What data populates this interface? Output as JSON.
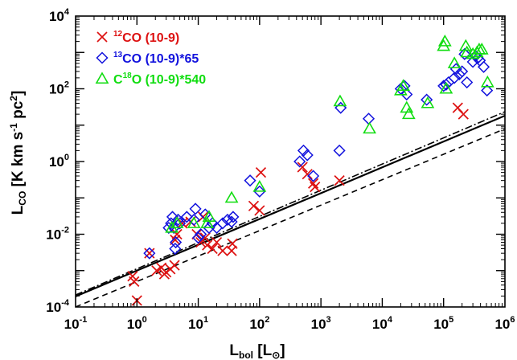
{
  "chart_data": {
    "type": "scatter",
    "title": "",
    "xlabel": {
      "main": "L",
      "sub": "bol",
      "unit_open": " [L",
      "unit_sub": "⊙",
      "unit_close": "]"
    },
    "ylabel": {
      "main": "L",
      "sub": "CO",
      "unit": " [K km s",
      "sup1": "-1",
      "mid": " pc",
      "sup2": "2",
      "close": "]"
    },
    "x_scale": "log",
    "y_scale": "log",
    "xlim": [
      0.1,
      1000000
    ],
    "ylim": [
      0.0001,
      10000
    ],
    "x_ticks": [
      {
        "value": 0.1,
        "base": "10",
        "exp": "-1"
      },
      {
        "value": 1,
        "base": "10",
        "exp": "0"
      },
      {
        "value": 10,
        "base": "10",
        "exp": "1"
      },
      {
        "value": 100,
        "base": "10",
        "exp": "2"
      },
      {
        "value": 1000,
        "base": "10",
        "exp": "3"
      },
      {
        "value": 10000,
        "base": "10",
        "exp": "4"
      },
      {
        "value": 100000,
        "base": "10",
        "exp": "5"
      },
      {
        "value": 1000000,
        "base": "10",
        "exp": "6"
      }
    ],
    "y_ticks": [
      {
        "value": 0.0001,
        "base": "10",
        "exp": "-4"
      },
      {
        "value": 0.01,
        "base": "10",
        "exp": "-2"
      },
      {
        "value": 1,
        "base": "10",
        "exp": "0"
      },
      {
        "value": 100,
        "base": "10",
        "exp": "2"
      },
      {
        "value": 10000,
        "base": "10",
        "exp": "4"
      }
    ],
    "grid": false,
    "legend_position": "top-left",
    "series": [
      {
        "name": {
          "sup": "12",
          "text": "CO (10-9)"
        },
        "marker": "x",
        "color": "#dd1111",
        "points": [
          [
            0.85,
            0.0007
          ],
          [
            0.9,
            0.0005
          ],
          [
            1.0,
            0.00015
          ],
          [
            1.6,
            0.003
          ],
          [
            2.1,
            0.001
          ],
          [
            2.5,
            0.0012
          ],
          [
            2.8,
            0.0008
          ],
          [
            3.0,
            0.0009
          ],
          [
            3.5,
            0.0011
          ],
          [
            4.1,
            0.0014
          ],
          [
            4.2,
            0.007
          ],
          [
            4.5,
            0.01
          ],
          [
            5.5,
            0.02
          ],
          [
            7.5,
            0.022
          ],
          [
            9.5,
            0.01
          ],
          [
            11,
            0.006
          ],
          [
            12,
            0.03
          ],
          [
            13,
            0.008
          ],
          [
            14,
            0.005
          ],
          [
            17,
            0.004
          ],
          [
            20,
            0.006
          ],
          [
            25,
            0.0035
          ],
          [
            35,
            0.0035
          ],
          [
            36,
            0.0055
          ],
          [
            80,
            0.06
          ],
          [
            100,
            0.045
          ],
          [
            105,
            0.5
          ],
          [
            500,
            0.7
          ],
          [
            600,
            0.45
          ],
          [
            750,
            0.25
          ],
          [
            800,
            0.2
          ],
          [
            2000,
            0.3
          ],
          [
            170000,
            30
          ],
          [
            210000,
            20
          ]
        ]
      },
      {
        "name": {
          "sup": "13",
          "text": "CO (10-9)*65"
        },
        "marker": "diamond",
        "color": "#1111dd",
        "points": [
          [
            1.6,
            0.003
          ],
          [
            3.3,
            0.015
          ],
          [
            3.6,
            0.02
          ],
          [
            3.8,
            0.03
          ],
          [
            4.0,
            0.015
          ],
          [
            4.2,
            0.004
          ],
          [
            4.3,
            0.006
          ],
          [
            4.7,
            0.025
          ],
          [
            5.0,
            0.02
          ],
          [
            6.5,
            0.03
          ],
          [
            8.5,
            0.025
          ],
          [
            9.0,
            0.05
          ],
          [
            10.0,
            0.008
          ],
          [
            11,
            0.01
          ],
          [
            13,
            0.035
          ],
          [
            15,
            0.015
          ],
          [
            17,
            0.02
          ],
          [
            20,
            0.015
          ],
          [
            25,
            0.02
          ],
          [
            30,
            0.025
          ],
          [
            35,
            0.022
          ],
          [
            37,
            0.03
          ],
          [
            70,
            0.3
          ],
          [
            100,
            0.15
          ],
          [
            450,
            1.0
          ],
          [
            520,
            2.0
          ],
          [
            600,
            1.5
          ],
          [
            750,
            0.4
          ],
          [
            2000,
            2.0
          ],
          [
            2100,
            30
          ],
          [
            6000,
            15
          ],
          [
            20000,
            100
          ],
          [
            23000,
            120
          ],
          [
            25000,
            70
          ],
          [
            53000,
            50
          ],
          [
            100000,
            120
          ],
          [
            110000,
            130
          ],
          [
            120000,
            150
          ],
          [
            150000,
            200
          ],
          [
            160000,
            350
          ],
          [
            180000,
            250
          ],
          [
            200000,
            300
          ],
          [
            220000,
            900
          ],
          [
            240000,
            150
          ],
          [
            300000,
            550
          ],
          [
            330000,
            800
          ],
          [
            360000,
            700
          ],
          [
            390000,
            600
          ],
          [
            450000,
            400
          ],
          [
            510000,
            90
          ]
        ]
      },
      {
        "name": {
          "sup": "18",
          "prefix": "C",
          "text": "O (10-9)*540"
        },
        "marker": "triangle",
        "color": "#11dd11",
        "points": [
          [
            3.7,
            0.015
          ],
          [
            4.5,
            0.02
          ],
          [
            8.5,
            0.02
          ],
          [
            14,
            0.02
          ],
          [
            15,
            0.03
          ],
          [
            35,
            0.1
          ],
          [
            100,
            0.2
          ],
          [
            2050,
            45
          ],
          [
            6200,
            8
          ],
          [
            20000,
            90
          ],
          [
            22000,
            120
          ],
          [
            25000,
            30
          ],
          [
            27000,
            20
          ],
          [
            55000,
            40
          ],
          [
            100000,
            1500
          ],
          [
            105000,
            2000
          ],
          [
            110000,
            100
          ],
          [
            150000,
            500
          ],
          [
            230000,
            1500
          ],
          [
            240000,
            1000
          ],
          [
            300000,
            900
          ],
          [
            350000,
            1000
          ],
          [
            380000,
            1200
          ],
          [
            420000,
            1200
          ],
          [
            520000,
            150
          ]
        ]
      }
    ],
    "fit_lines": [
      {
        "style": "solid",
        "slope": 0.71,
        "intercept": -3.0
      },
      {
        "style": "dash-dot",
        "slope": 0.72,
        "intercept": -2.95
      },
      {
        "style": "dashed",
        "slope": 0.7,
        "intercept": -3.3
      }
    ]
  }
}
